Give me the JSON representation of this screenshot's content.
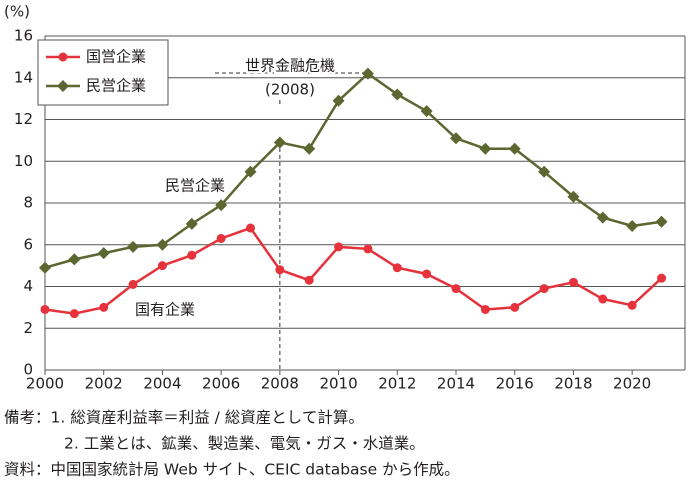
{
  "chart_data": {
    "type": "line",
    "unit_label": "(%)",
    "x": [
      2000,
      2001,
      2002,
      2003,
      2004,
      2005,
      2006,
      2007,
      2008,
      2009,
      2010,
      2011,
      2012,
      2013,
      2014,
      2015,
      2016,
      2017,
      2018,
      2019,
      2020,
      2021
    ],
    "series": [
      {
        "name": "国営企業",
        "color": "#e5323b",
        "marker": "circle",
        "values": [
          2.9,
          2.7,
          3.0,
          4.1,
          5.0,
          5.5,
          6.3,
          6.8,
          4.8,
          4.3,
          5.9,
          5.8,
          4.9,
          4.6,
          3.9,
          2.9,
          3.0,
          3.9,
          4.2,
          3.4,
          3.1,
          4.4
        ]
      },
      {
        "name": "民営企業",
        "color": "#5b6630",
        "marker": "diamond",
        "values": [
          4.9,
          5.3,
          5.6,
          5.9,
          6.0,
          7.0,
          7.9,
          9.5,
          10.9,
          10.6,
          12.9,
          14.2,
          13.2,
          12.4,
          11.1,
          10.6,
          10.6,
          9.5,
          8.3,
          7.3,
          6.9,
          7.1
        ]
      }
    ],
    "xlim": [
      2000,
      2021.8
    ],
    "xticks": [
      2000,
      2002,
      2004,
      2006,
      2008,
      2010,
      2012,
      2014,
      2016,
      2018,
      2020
    ],
    "ylim": [
      0,
      16
    ],
    "yticks": [
      0,
      2,
      4,
      6,
      8,
      10,
      12,
      14,
      16
    ],
    "grid": true,
    "legend": "upper left",
    "crisis_year": 2008,
    "annotations": [
      "世界金融危機",
      "(2008)",
      "民営企業",
      "国有企業"
    ],
    "notes": [
      "備考：1. 総資産利益率＝利益 / 総資産として計算。",
      "2. 工業とは、鉱業、製造業、電気・ガス・水道業。",
      "資料：中国国家統計局 Web サイト、CEIC database から作成。"
    ]
  }
}
